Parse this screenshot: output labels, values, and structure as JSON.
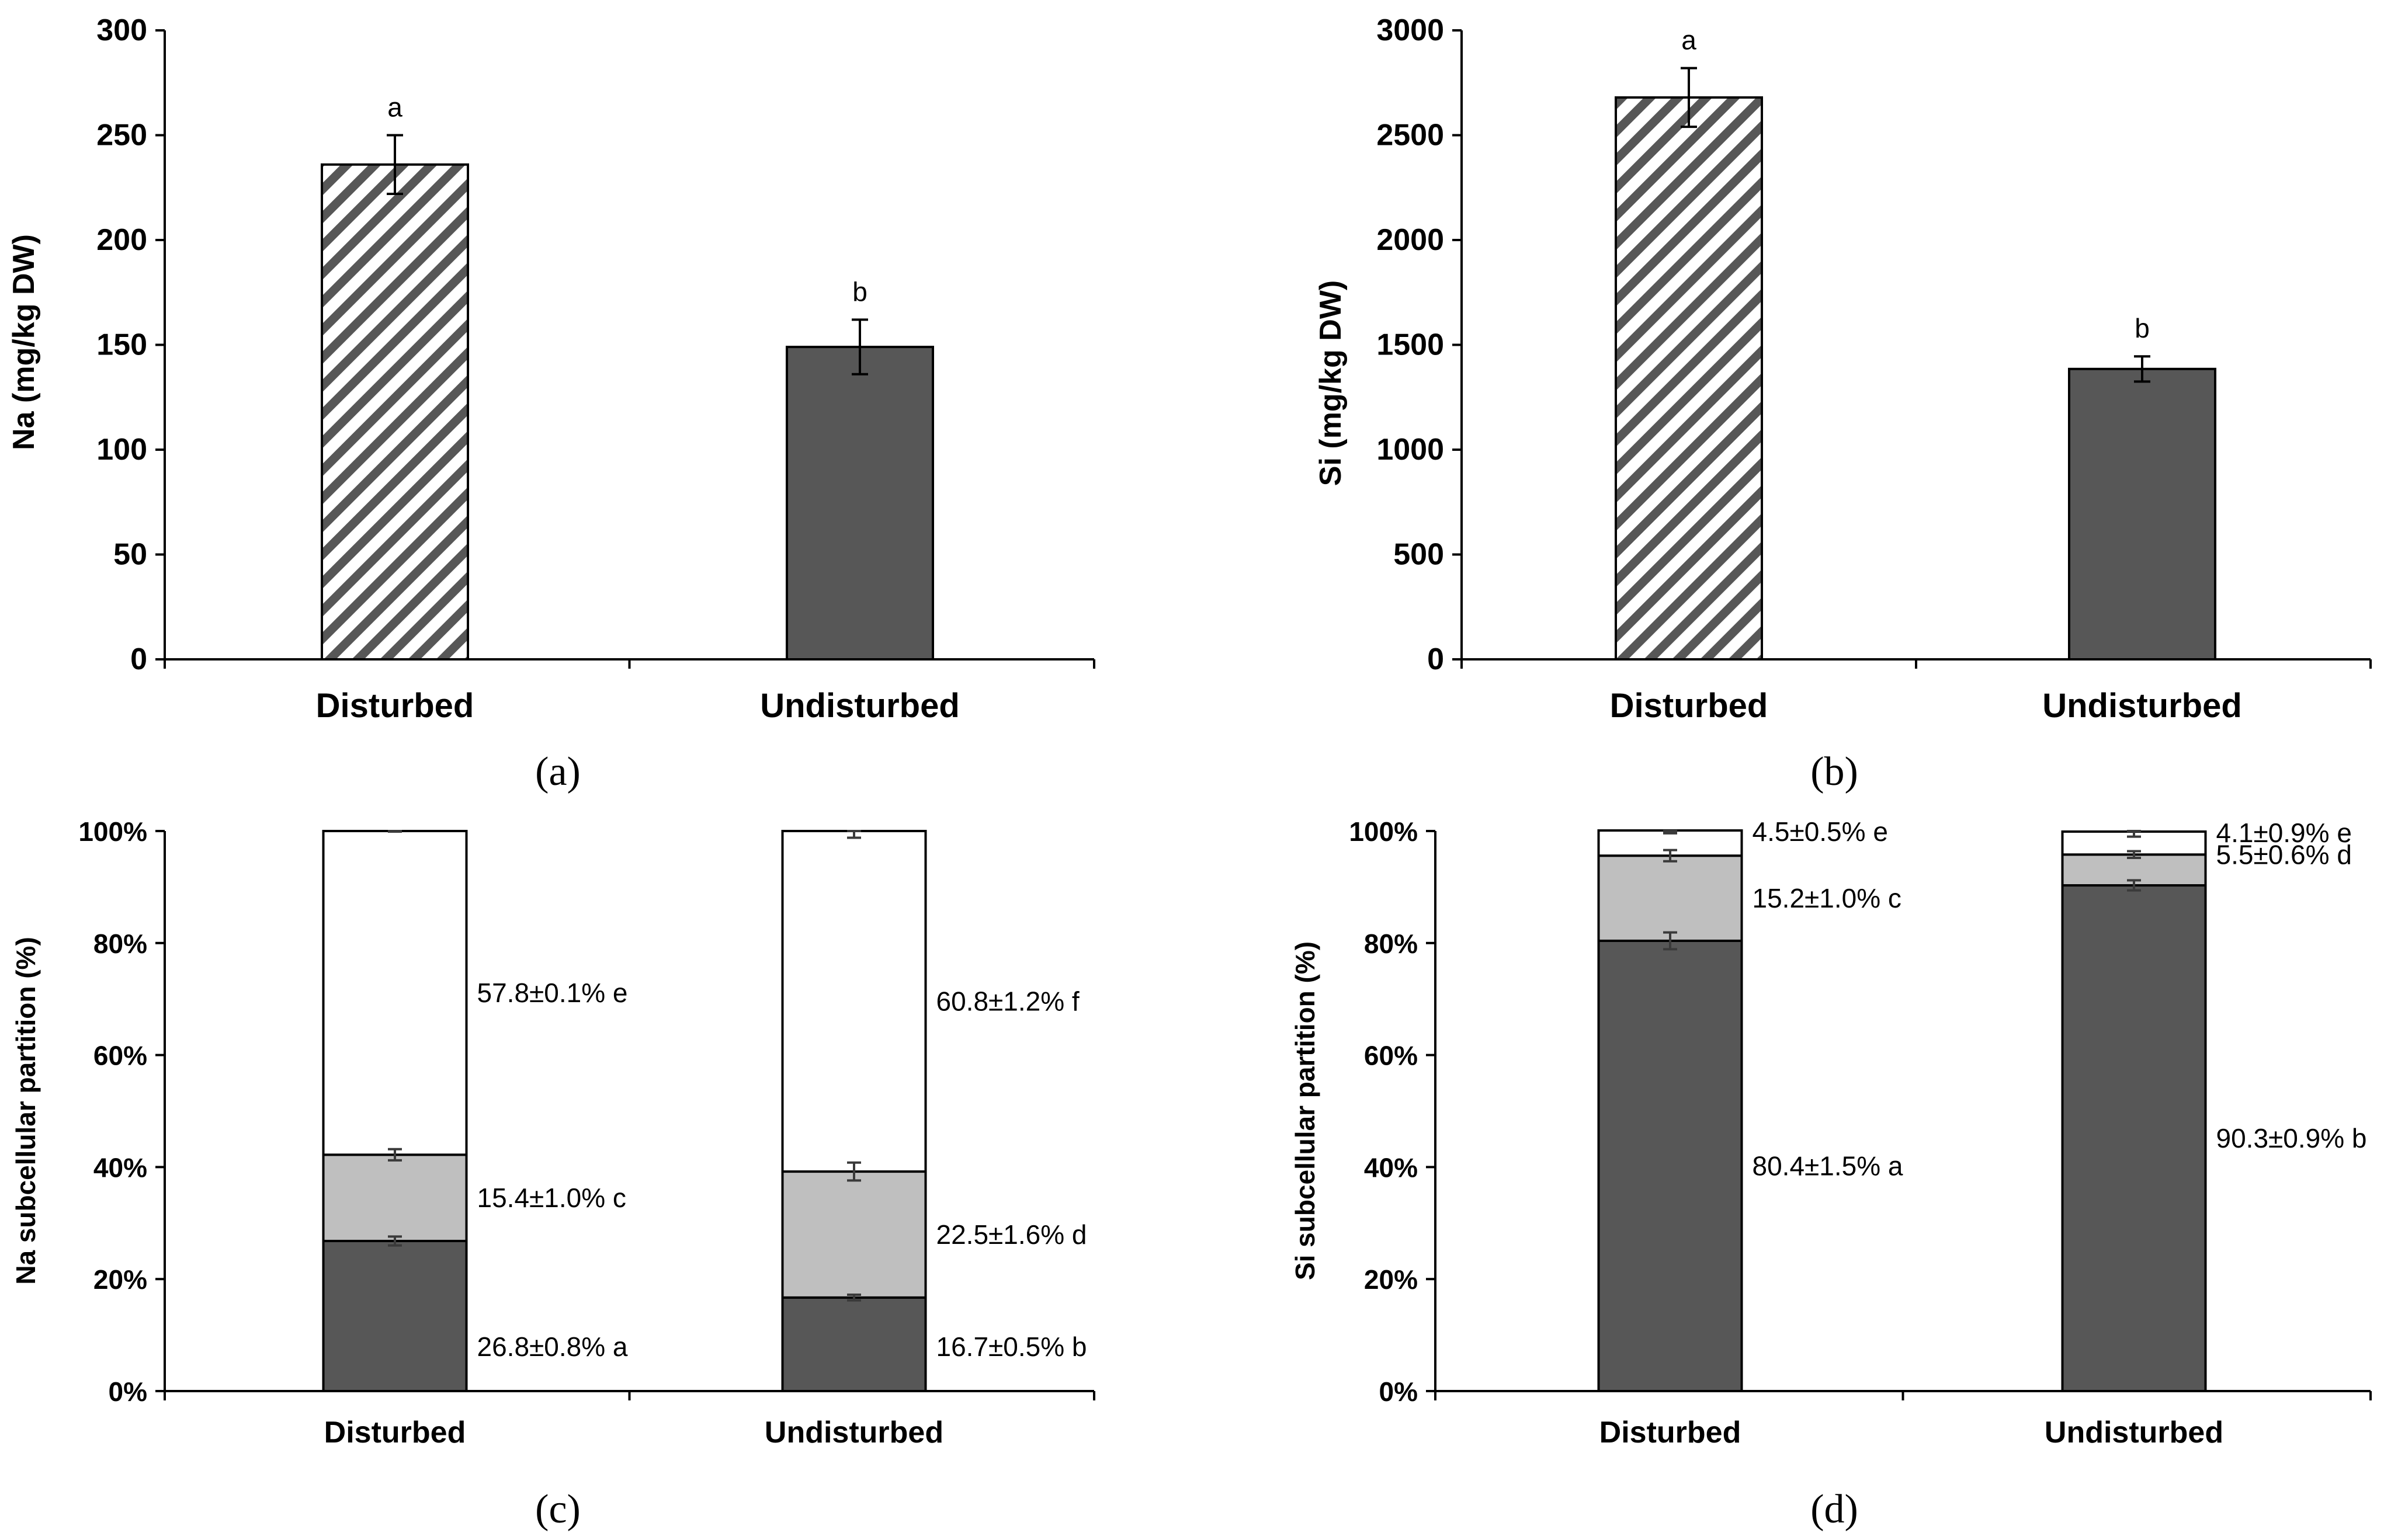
{
  "colors": {
    "dark_bar": "#575757",
    "light_bar": "#bfbfbf",
    "white_bar": "#ffffff",
    "hatch": "#575757",
    "axis": "#000000"
  },
  "chart_data": [
    {
      "panel": "a",
      "caption": "(a)",
      "type": "bar",
      "categories": [
        "Disturbed",
        "Undisturbed"
      ],
      "values": [
        236,
        149
      ],
      "errors": [
        14,
        13
      ],
      "letters": [
        "a",
        "b"
      ],
      "fills": [
        "hatch",
        "dark"
      ],
      "ylabel": "Na (mg/kg DW)",
      "ylim": [
        0,
        300
      ],
      "yticks": [
        "0",
        "50",
        "100",
        "150",
        "200",
        "250",
        "300"
      ],
      "ytick_values": [
        0,
        50,
        100,
        150,
        200,
        250,
        300
      ],
      "grid": false
    },
    {
      "panel": "b",
      "caption": "(b)",
      "type": "bar",
      "categories": [
        "Disturbed",
        "Undisturbed"
      ],
      "values": [
        2680,
        1385
      ],
      "errors": [
        140,
        60
      ],
      "letters": [
        "a",
        "b"
      ],
      "fills": [
        "hatch",
        "dark"
      ],
      "ylabel": "Si (mg/kg DW)",
      "ylim": [
        0,
        3000
      ],
      "yticks": [
        "0",
        "500",
        "1000",
        "1500",
        "2000",
        "2500",
        "3000"
      ],
      "ytick_values": [
        0,
        500,
        1000,
        1500,
        2000,
        2500,
        3000
      ],
      "grid": false
    },
    {
      "panel": "c",
      "caption": "(c)",
      "type": "bar",
      "stacked": true,
      "categories": [
        "Disturbed",
        "Undisturbed"
      ],
      "series": [
        {
          "fill": "dark",
          "values": [
            26.8,
            16.7
          ],
          "errors": [
            0.8,
            0.5
          ],
          "labels": [
            "26.8±0.8% a",
            "16.7±0.5% b"
          ]
        },
        {
          "fill": "light",
          "values": [
            15.4,
            22.5
          ],
          "errors": [
            1.0,
            1.6
          ],
          "labels": [
            "15.4±1.0% c",
            "22.5±1.6% d"
          ]
        },
        {
          "fill": "white",
          "values": [
            57.8,
            60.8
          ],
          "errors": [
            0.1,
            1.2
          ],
          "labels": [
            "57.8±0.1% e",
            "60.8±1.2% f"
          ]
        }
      ],
      "ylabel": "Na subcellular partition (%)",
      "ylim": [
        0,
        100
      ],
      "yticks": [
        "0%",
        "20%",
        "40%",
        "60%",
        "80%",
        "100%"
      ],
      "ytick_values": [
        0,
        20,
        40,
        60,
        80,
        100
      ],
      "grid": false
    },
    {
      "panel": "d",
      "caption": "(d)",
      "type": "bar",
      "stacked": true,
      "categories": [
        "Disturbed",
        "Undisturbed"
      ],
      "series": [
        {
          "fill": "dark",
          "values": [
            80.4,
            90.3
          ],
          "errors": [
            1.5,
            0.9
          ],
          "labels": [
            "80.4±1.5% a",
            "90.3±0.9% b"
          ]
        },
        {
          "fill": "light",
          "values": [
            15.2,
            5.5
          ],
          "errors": [
            1.0,
            0.6
          ],
          "labels": [
            "15.2±1.0% c",
            "5.5±0.6% d"
          ]
        },
        {
          "fill": "white",
          "values": [
            4.5,
            4.1
          ],
          "errors": [
            0.5,
            0.9
          ],
          "labels": [
            "4.5±0.5% e",
            "4.1±0.9% e"
          ]
        }
      ],
      "ylabel": "Si subcellular partition (%)",
      "ylim": [
        0,
        100
      ],
      "yticks": [
        "0%",
        "20%",
        "40%",
        "60%",
        "80%",
        "100%"
      ],
      "ytick_values": [
        0,
        20,
        40,
        60,
        80,
        100
      ],
      "grid": false
    }
  ]
}
